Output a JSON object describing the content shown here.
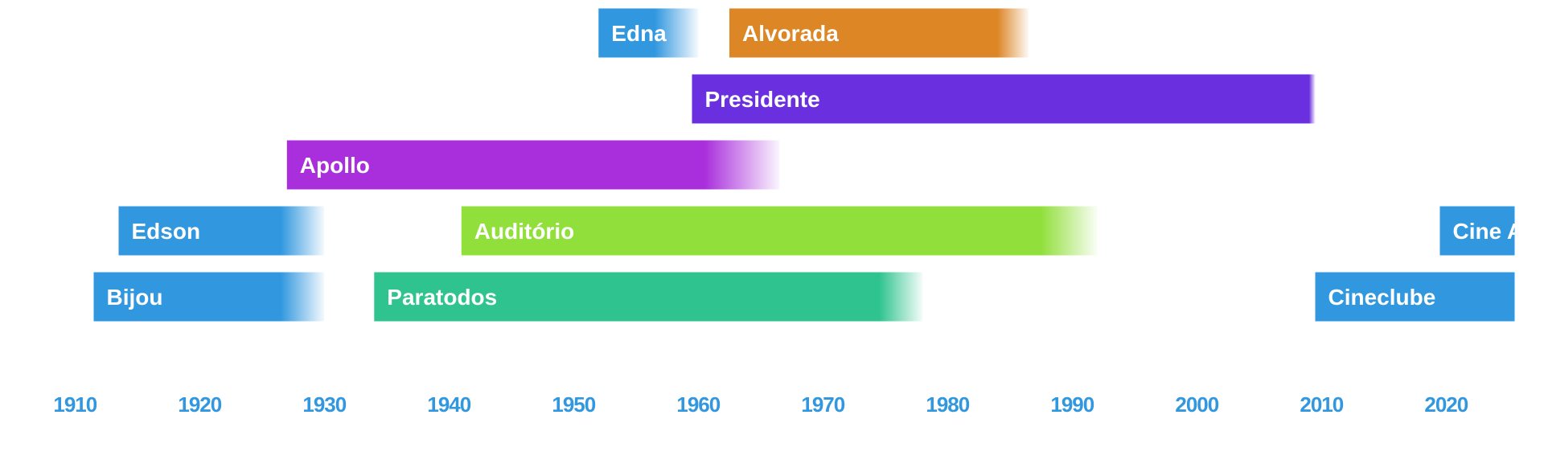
{
  "chart_data": {
    "type": "timeline",
    "title": "",
    "xlabel": "",
    "ylabel": "",
    "xlim": [
      1908.5,
      2026.5
    ],
    "grid": false,
    "legend": "none",
    "colors": {
      "blue": "#3197df",
      "orange": "#dc8626",
      "purple": "#6a2fdf",
      "violet": "#a92fdc",
      "green": "#91df3b",
      "teal": "#2ec38f",
      "tick": "#3197df"
    },
    "x_ticks": [
      1910,
      1920,
      1930,
      1940,
      1950,
      1960,
      1970,
      1980,
      1990,
      2000,
      2010,
      2020
    ],
    "tick_labels": [
      "1910",
      "1920",
      "1930",
      "1940",
      "1950",
      "1960",
      "1970",
      "1980",
      "1990",
      "2000",
      "2010",
      "2020"
    ],
    "series": [
      {
        "name": "Bijou",
        "row": 1,
        "start": 1911.5,
        "end": 1930.0,
        "fade_from": 1926.5,
        "color": "#3197df"
      },
      {
        "name": "Edson",
        "row": 2,
        "start": 1913.5,
        "end": 1930.0,
        "fade_from": 1926.5,
        "color": "#3197df"
      },
      {
        "name": "Paratodos",
        "row": 1,
        "start": 1934.0,
        "end": 1978.0,
        "fade_from": 1974.5,
        "color": "#2ec38f"
      },
      {
        "name": "Auditório",
        "row": 2,
        "start": 1941.0,
        "end": 1992.0,
        "fade_from": 1987.5,
        "color": "#91df3b"
      },
      {
        "name": "Apollo",
        "row": 3,
        "start": 1927.0,
        "end": 1966.5,
        "fade_from": 1960.5,
        "color": "#a92fdc"
      },
      {
        "name": "Presidente",
        "row": 4,
        "start": 1959.5,
        "end": 2009.5,
        "fade_from": 2009.0,
        "color": "#6a2fdf"
      },
      {
        "name": "Edna",
        "row": 5,
        "start": 1952.0,
        "end": 1960.0,
        "fade_from": 1956.5,
        "color": "#3197df"
      },
      {
        "name": "Alvorada",
        "row": 5,
        "start": 1962.5,
        "end": 1986.5,
        "fade_from": 1984.0,
        "color": "#dc8626"
      },
      {
        "name": "Cineclube",
        "row": 1,
        "start": 2009.5,
        "end": 2025.5,
        "fade_from": 2025.5,
        "color": "#3197df"
      },
      {
        "name": "Cine A",
        "row": 2,
        "start": 2019.5,
        "end": 2025.5,
        "fade_from": 2025.5,
        "color": "#3197df"
      }
    ]
  }
}
